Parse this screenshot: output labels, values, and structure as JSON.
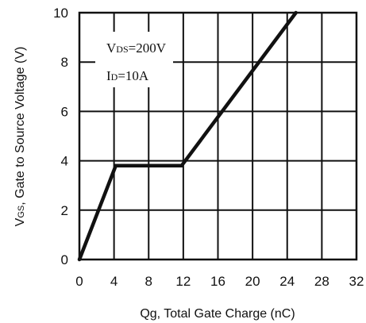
{
  "chart_data": {
    "type": "line",
    "xlabel": {
      "main": "Qg, Total Gate Charge (nC)"
    },
    "ylabel": {
      "prefix": "V",
      "sub": "GS",
      "rest": ", Gate to Source Voltage (V)"
    },
    "xlim": [
      0,
      32
    ],
    "ylim": [
      0,
      10
    ],
    "xticks": [
      0,
      4,
      8,
      12,
      16,
      20,
      24,
      28,
      32
    ],
    "yticks": [
      0,
      2,
      4,
      6,
      8,
      10
    ],
    "grid": true,
    "series": [
      {
        "x": [
          0,
          4.2,
          11.8,
          25
        ],
        "y": [
          0,
          3.8,
          3.8,
          10
        ]
      }
    ],
    "annotations": [
      {
        "prefix": "V",
        "sub": "DS",
        "rest": "=200V"
      },
      {
        "prefix": "I",
        "sub": "D",
        "rest": "=10A"
      }
    ]
  }
}
